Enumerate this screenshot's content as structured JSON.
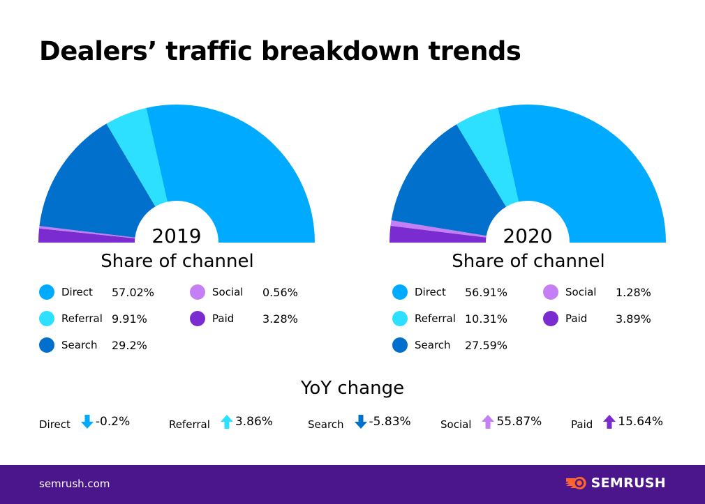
{
  "title": "Dealers’ traffic breakdown trends",
  "colors": {
    "Direct": "#00aaff",
    "Referral": "#2ee0ff",
    "Search": "#0070cc",
    "Social": "#c47ff5",
    "Paid": "#7b2cd1",
    "footer": "#4b168c",
    "logo": "#ff642d"
  },
  "chart_data": [
    {
      "type": "pie",
      "variant": "semi-donut",
      "title": "2019",
      "subtitle": "Share of channel",
      "categories": [
        "Direct",
        "Referral",
        "Search",
        "Social",
        "Paid"
      ],
      "values": [
        57.02,
        9.91,
        29.2,
        0.56,
        3.28
      ],
      "labels": [
        "57.02%",
        "9.91%",
        "29.2%",
        "0.56%",
        "3.28%"
      ]
    },
    {
      "type": "pie",
      "variant": "semi-donut",
      "title": "2020",
      "subtitle": "Share of channel",
      "categories": [
        "Direct",
        "Referral",
        "Search",
        "Social",
        "Paid"
      ],
      "values": [
        56.91,
        10.31,
        27.59,
        1.28,
        3.89
      ],
      "labels": [
        "56.91%",
        "10.31%",
        "27.59%",
        "1.28%",
        "3.89%"
      ]
    }
  ],
  "yoy": {
    "title": "YoY change",
    "items": [
      {
        "label": "Direct",
        "value": "-0.2%",
        "direction": "down",
        "color": "#00aaff"
      },
      {
        "label": "Referral",
        "value": "3.86%",
        "direction": "up",
        "color": "#2ee0ff"
      },
      {
        "label": "Search",
        "value": "-5.83%",
        "direction": "down",
        "color": "#0070cc"
      },
      {
        "label": "Social",
        "value": "55.87%",
        "direction": "up",
        "color": "#c47ff5"
      },
      {
        "label": "Paid",
        "value": "15.64%",
        "direction": "up",
        "color": "#7b2cd1"
      }
    ]
  },
  "footer": {
    "site": "semrush.com",
    "logo": "SEMRUSH"
  }
}
